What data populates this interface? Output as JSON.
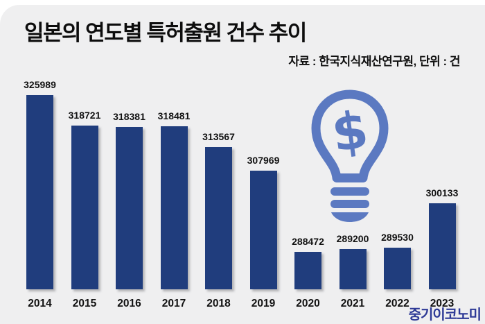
{
  "header": {
    "title": "일본의 연도별 특허출원 건수 추이",
    "source": "자료 : 한국지식재산연구원, 단위 : 건"
  },
  "chart_data": {
    "type": "bar",
    "title": "일본의 연도별 특허출원 건수 추이",
    "xlabel": "",
    "ylabel": "건",
    "categories": [
      "2014",
      "2015",
      "2016",
      "2017",
      "2018",
      "2019",
      "2020",
      "2021",
      "2022",
      "2023"
    ],
    "values": [
      325989,
      318721,
      318381,
      318481,
      313567,
      307969,
      288472,
      289200,
      289530,
      300133
    ],
    "data_labels": true,
    "grid": false,
    "legend": false,
    "ylim": [
      279500,
      326500
    ]
  },
  "icon": {
    "name": "lightbulb-dollar-icon",
    "glyph": "$",
    "color": "#5b79c1"
  },
  "footer": {
    "logo_text": "중기이코노미",
    "logo_color": "#2e3a96"
  },
  "colors": {
    "background": "#efeff0",
    "bar": "#203d7d",
    "text": "#111111"
  }
}
